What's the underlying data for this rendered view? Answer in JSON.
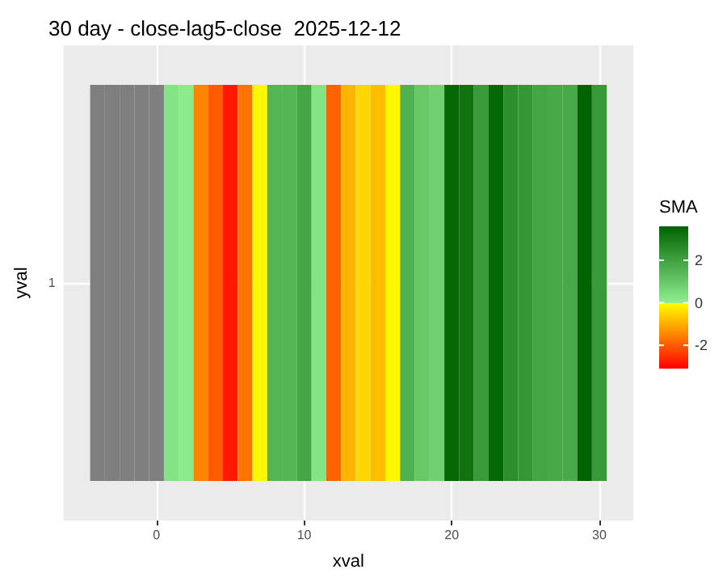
{
  "chart_data": {
    "type": "heatmap",
    "title": "30 day - close-lag5-close  2025-12-12",
    "xlabel": "xval",
    "ylabel": "yval",
    "clabel": "SMA",
    "x": [
      -4,
      -3,
      -2,
      -1,
      0,
      1,
      2,
      3,
      4,
      5,
      6,
      7,
      8,
      9,
      10,
      11,
      12,
      13,
      14,
      15,
      16,
      17,
      18,
      19,
      20,
      21,
      22,
      23,
      24,
      25,
      26,
      27,
      28,
      29,
      30
    ],
    "y_categories": [
      "1"
    ],
    "cells": [
      [
        null,
        null,
        null,
        null,
        null,
        0.3,
        0.1,
        -1.5,
        -2,
        -2.8,
        -1.7,
        -0.1,
        1.5,
        1.5,
        1.9,
        0.3,
        -1.9,
        -0.9,
        -0.5,
        -0.8,
        -0.1,
        1.6,
        1.0,
        0.8,
        3.5,
        3.2,
        2.2,
        3.5,
        2.5,
        2.3,
        1.9,
        1.8,
        1.8,
        3.6,
        2.2
      ]
    ],
    "xlim": [
      -6.3,
      32.3
    ],
    "xticks": [
      0,
      10,
      20,
      30
    ],
    "clim": [
      -3.1,
      3.6
    ],
    "cticks": [
      -2,
      0,
      2
    ],
    "grid": true
  }
}
